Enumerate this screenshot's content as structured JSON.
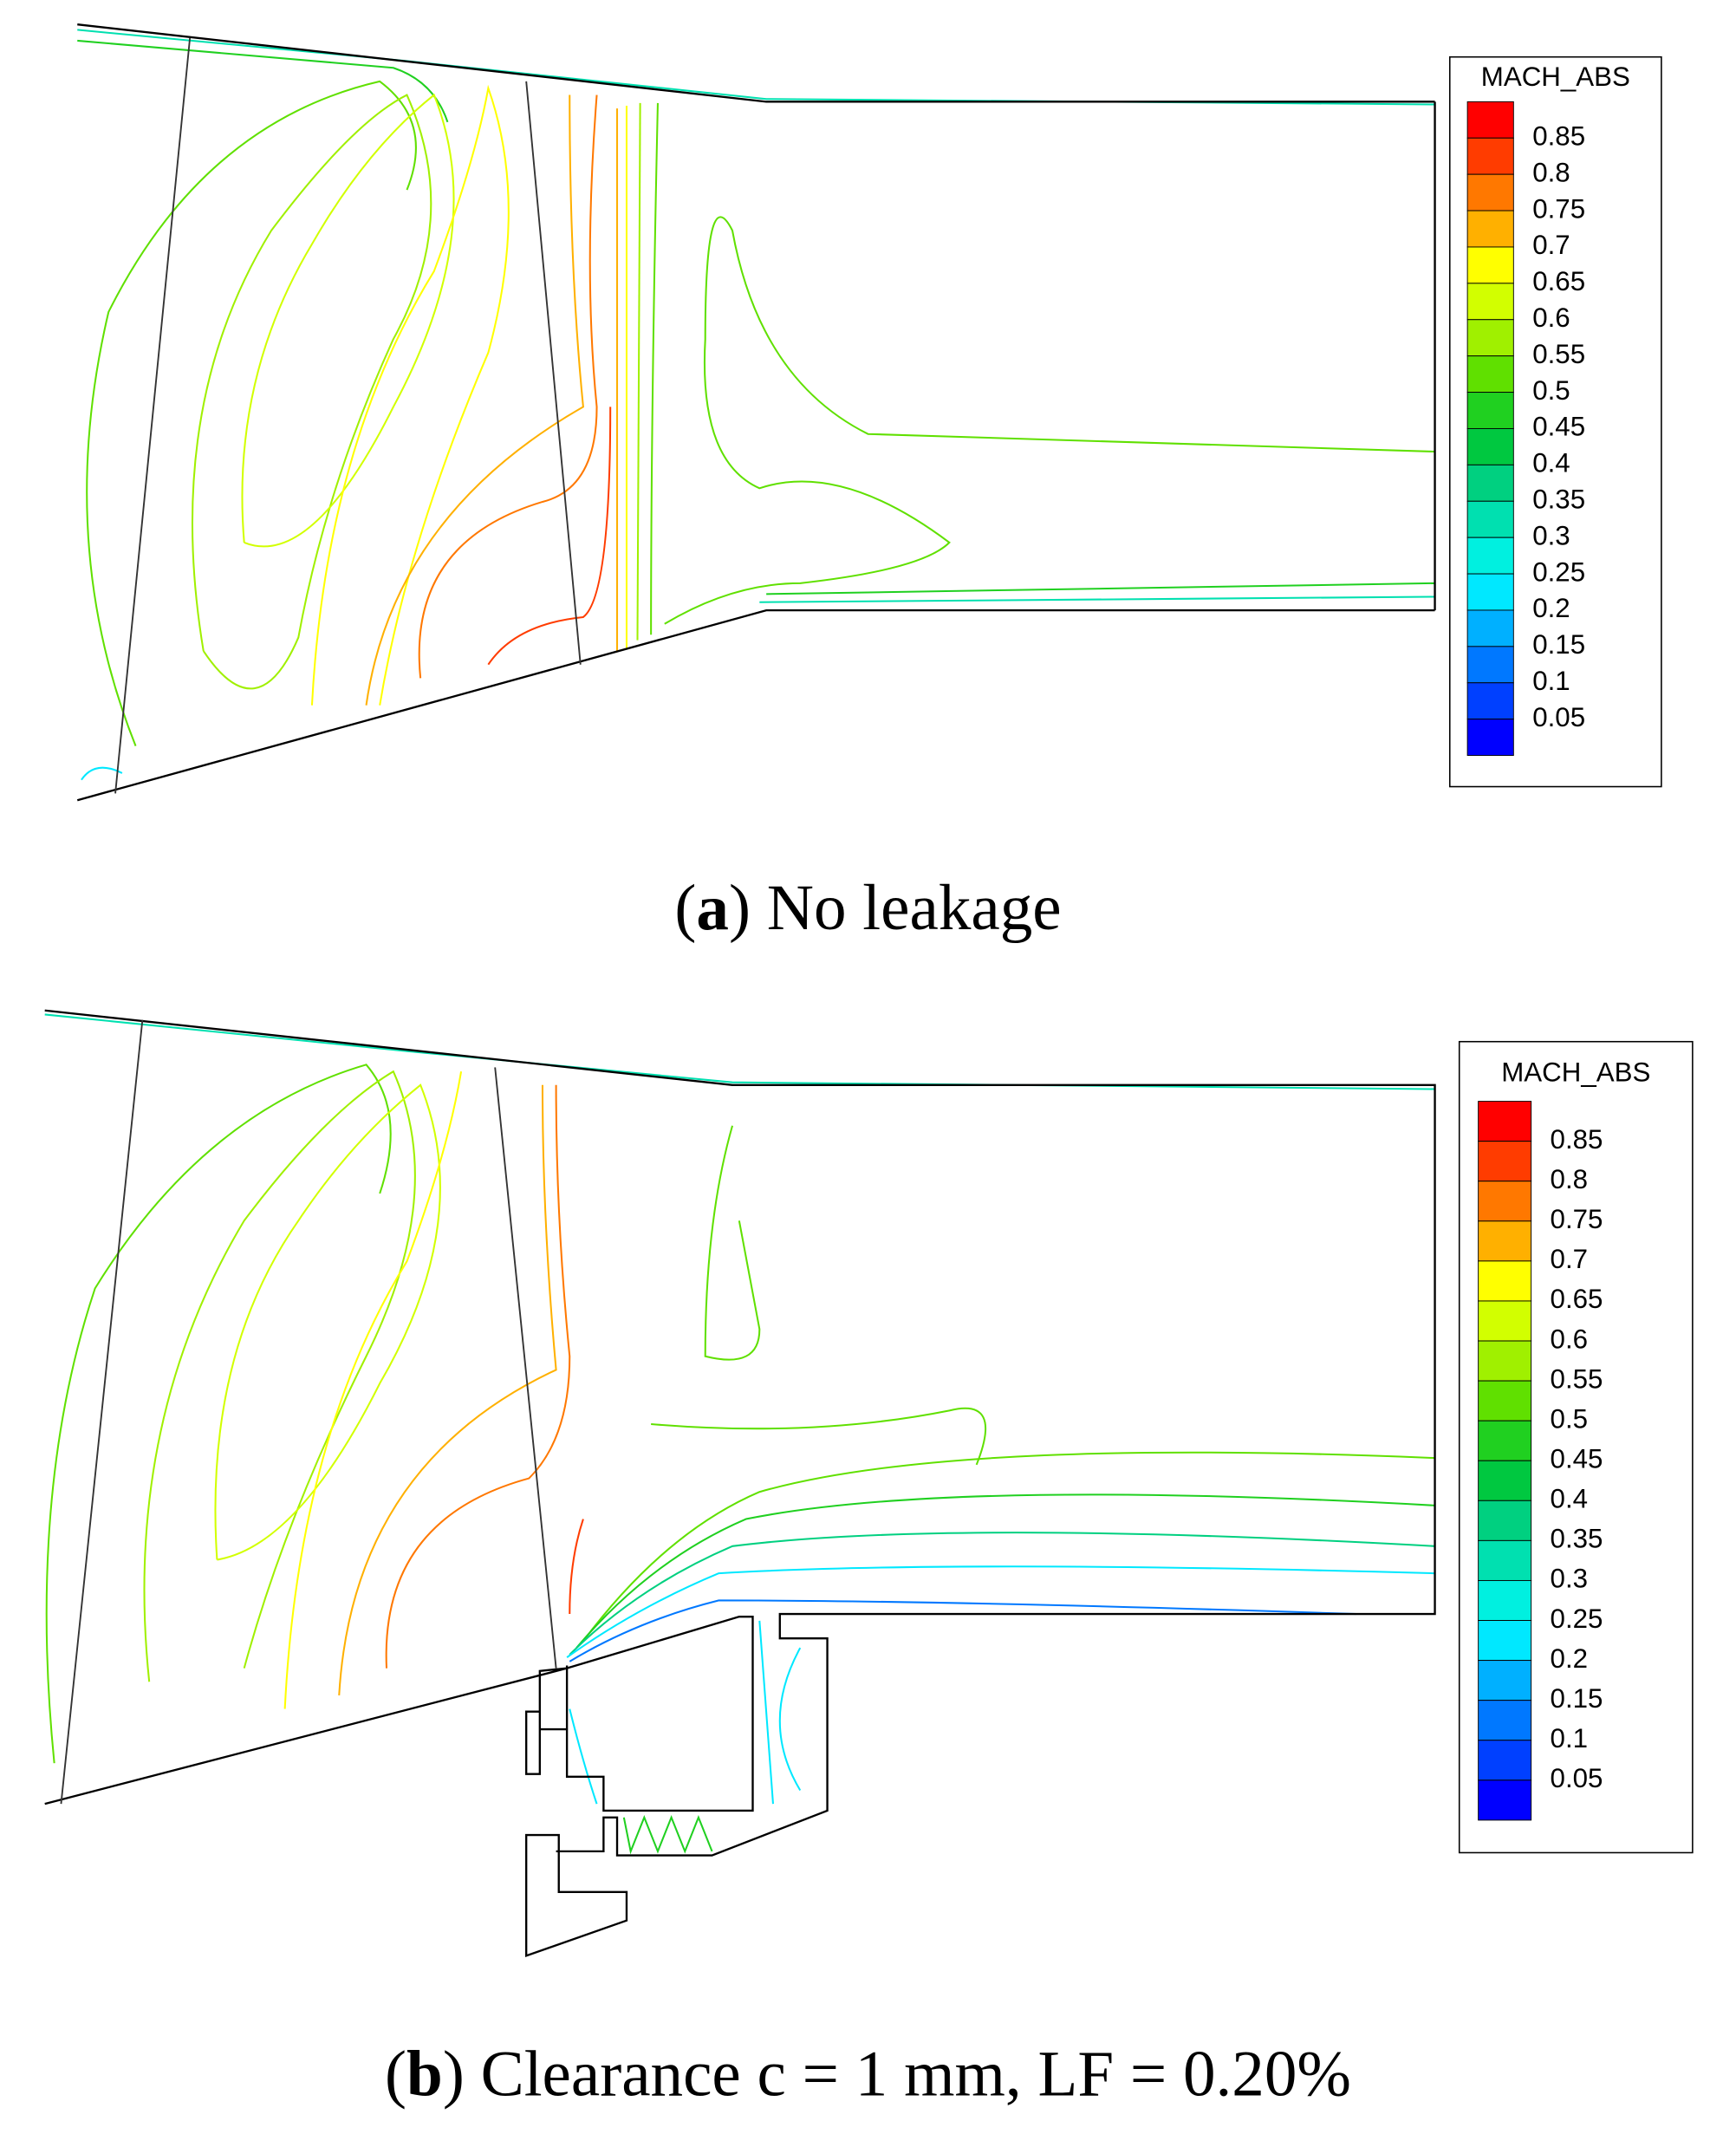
{
  "panels": [
    {
      "legend": {
        "title": "MACH_ABS",
        "levels": [
          "0.85",
          "0.8",
          "0.75",
          "0.7",
          "0.65",
          "0.6",
          "0.55",
          "0.5",
          "0.45",
          "0.4",
          "0.35",
          "0.3",
          "0.25",
          "0.2",
          "0.15",
          "0.1",
          "0.05"
        ],
        "colors": [
          "#ff0000",
          "#ff3c00",
          "#ff7800",
          "#ffb000",
          "#ffff00",
          "#d2ff00",
          "#a0f000",
          "#60e000",
          "#20d020",
          "#00c840",
          "#00d080",
          "#00e0b0",
          "#00f0e0",
          "#00e8ff",
          "#00b0ff",
          "#0078ff",
          "#0040ff",
          "#0000ff"
        ]
      },
      "caption": {
        "open": "(",
        "label": "a",
        "rest": ") No leakage"
      }
    },
    {
      "legend": {
        "title": "MACH_ABS",
        "levels": [
          "0.85",
          "0.8",
          "0.75",
          "0.7",
          "0.65",
          "0.6",
          "0.55",
          "0.5",
          "0.45",
          "0.4",
          "0.35",
          "0.3",
          "0.25",
          "0.2",
          "0.15",
          "0.1",
          "0.05"
        ],
        "colors": [
          "#ff0000",
          "#ff3c00",
          "#ff7800",
          "#ffb000",
          "#ffff00",
          "#d2ff00",
          "#a0f000",
          "#60e000",
          "#20d020",
          "#00c840",
          "#00d080",
          "#00e0b0",
          "#00f0e0",
          "#00e8ff",
          "#00b0ff",
          "#0078ff",
          "#0040ff",
          "#0000ff"
        ]
      },
      "caption": {
        "open": "(",
        "label": "b",
        "rest": ") Clearance c = 1 mm, LF = 0.20%"
      }
    }
  ]
}
